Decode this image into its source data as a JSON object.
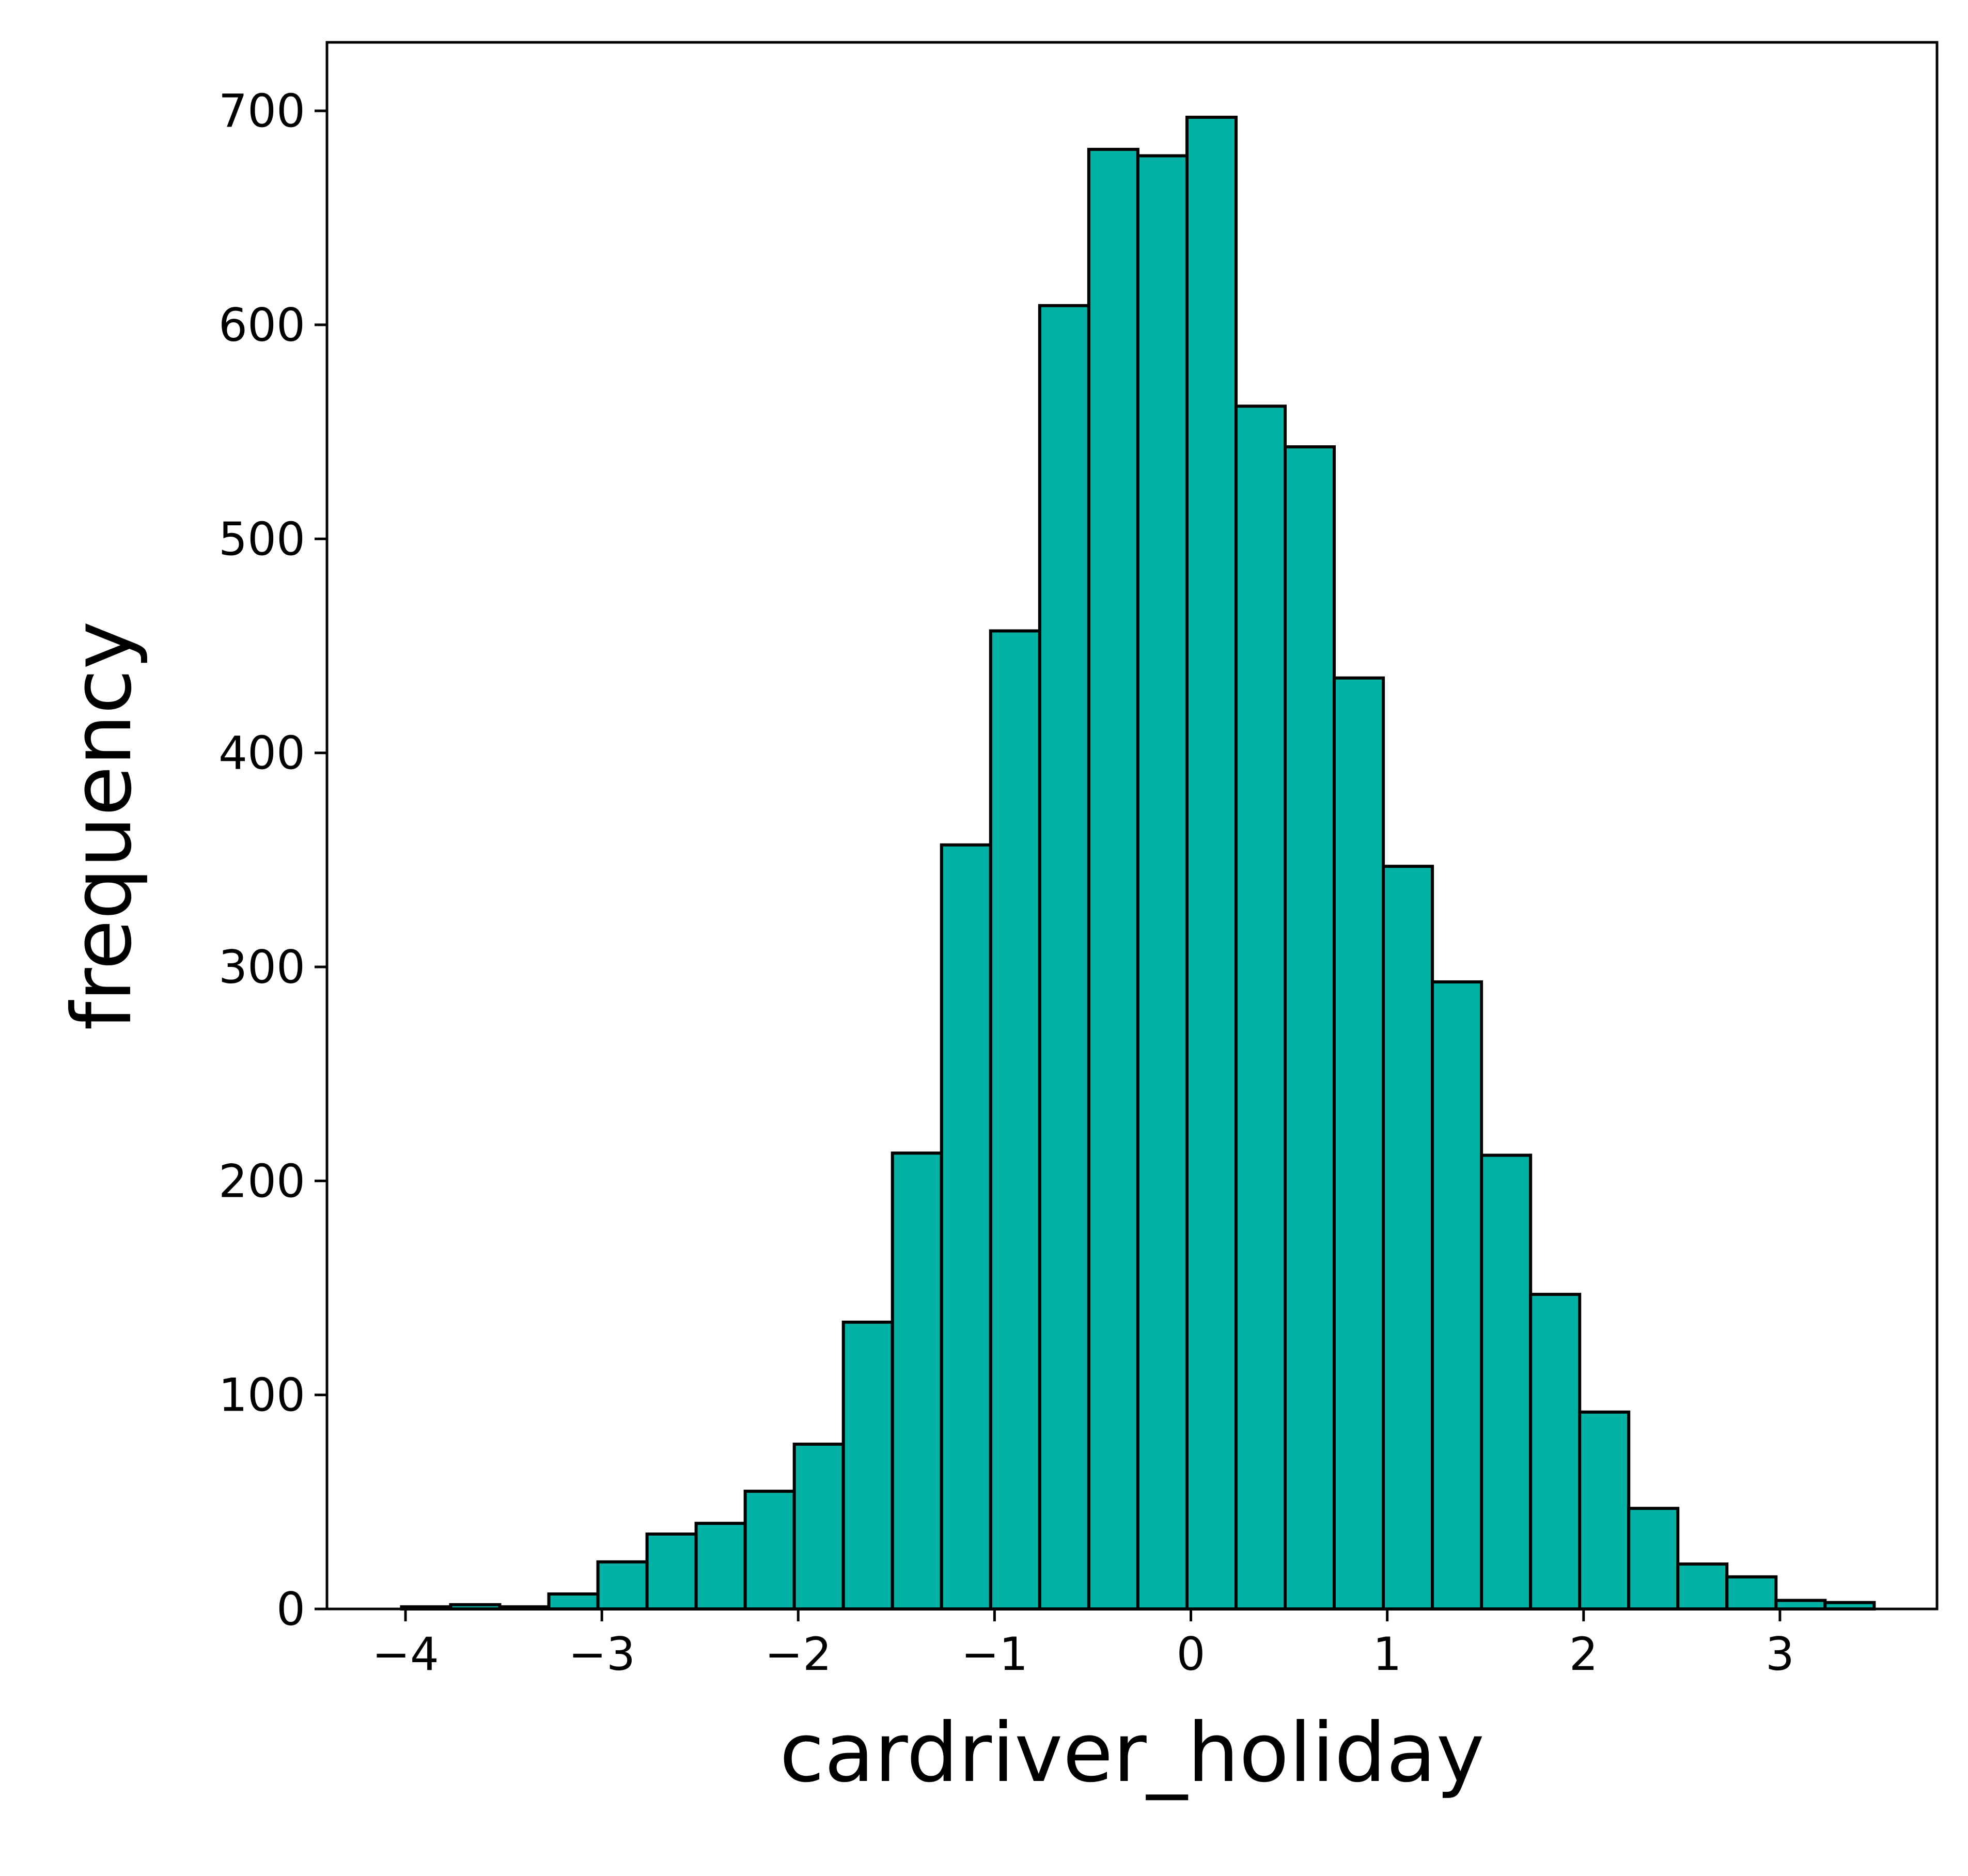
{
  "chart_data": {
    "type": "bar",
    "title": "",
    "xlabel": "cardriver_holiday",
    "ylabel": "frequency",
    "xlim": [
      -4.4,
      3.8
    ],
    "ylim": [
      0,
      732
    ],
    "xticks": [
      -4,
      -3,
      -2,
      -1,
      0,
      1,
      2,
      3
    ],
    "xtick_labels": [
      "−4",
      "−3",
      "−2",
      "−1",
      "0",
      "1",
      "2",
      "3"
    ],
    "yticks": [
      0,
      100,
      200,
      300,
      400,
      500,
      600,
      700
    ],
    "ytick_labels": [
      "0",
      "100",
      "200",
      "300",
      "400",
      "500",
      "600",
      "700"
    ],
    "grid": false,
    "bar_color": "#02b2a5",
    "edge_color": "#000000",
    "bins": [
      {
        "x0": -4.02,
        "x1": -3.77,
        "value": 1
      },
      {
        "x0": -3.77,
        "x1": -3.52,
        "value": 2
      },
      {
        "x0": -3.52,
        "x1": -3.27,
        "value": 1
      },
      {
        "x0": -3.27,
        "x1": -3.02,
        "value": 7
      },
      {
        "x0": -3.02,
        "x1": -2.77,
        "value": 22
      },
      {
        "x0": -2.77,
        "x1": -2.52,
        "value": 35
      },
      {
        "x0": -2.52,
        "x1": -2.27,
        "value": 40
      },
      {
        "x0": -2.27,
        "x1": -2.02,
        "value": 55
      },
      {
        "x0": -2.02,
        "x1": -1.77,
        "value": 77
      },
      {
        "x0": -1.77,
        "x1": -1.52,
        "value": 134
      },
      {
        "x0": -1.52,
        "x1": -1.27,
        "value": 213
      },
      {
        "x0": -1.27,
        "x1": -1.02,
        "value": 357
      },
      {
        "x0": -1.02,
        "x1": -0.77,
        "value": 457
      },
      {
        "x0": -0.77,
        "x1": -0.52,
        "value": 609
      },
      {
        "x0": -0.52,
        "x1": -0.27,
        "value": 682
      },
      {
        "x0": -0.27,
        "x1": -0.02,
        "value": 679
      },
      {
        "x0": -0.02,
        "x1": 0.23,
        "value": 697
      },
      {
        "x0": 0.23,
        "x1": 0.48,
        "value": 562
      },
      {
        "x0": 0.48,
        "x1": 0.73,
        "value": 543
      },
      {
        "x0": 0.73,
        "x1": 0.98,
        "value": 435
      },
      {
        "x0": 0.98,
        "x1": 1.23,
        "value": 347
      },
      {
        "x0": 1.23,
        "x1": 1.48,
        "value": 293
      },
      {
        "x0": 1.48,
        "x1": 1.73,
        "value": 212
      },
      {
        "x0": 1.73,
        "x1": 1.98,
        "value": 147
      },
      {
        "x0": 1.98,
        "x1": 2.23,
        "value": 92
      },
      {
        "x0": 2.23,
        "x1": 2.48,
        "value": 47
      },
      {
        "x0": 2.48,
        "x1": 2.73,
        "value": 21
      },
      {
        "x0": 2.73,
        "x1": 2.98,
        "value": 15
      },
      {
        "x0": 2.98,
        "x1": 3.23,
        "value": 4
      },
      {
        "x0": 3.23,
        "x1": 3.48,
        "value": 3
      }
    ]
  }
}
